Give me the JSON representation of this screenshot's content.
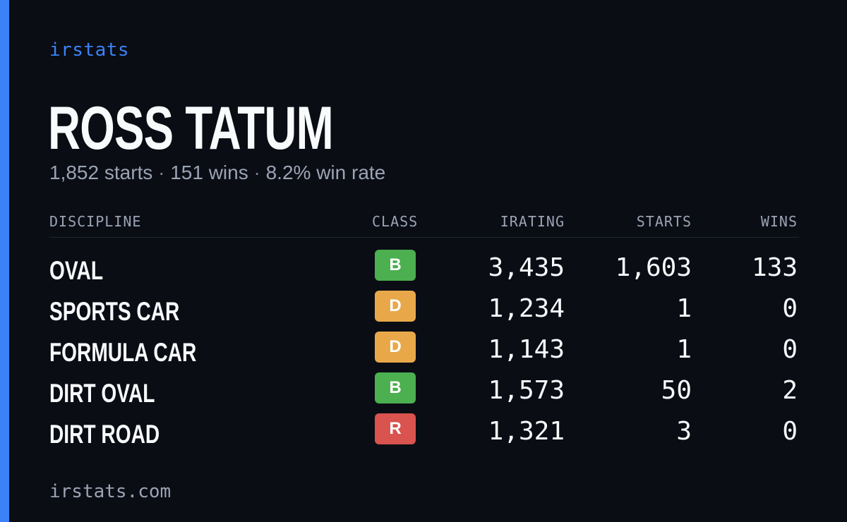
{
  "brand": "irstats",
  "player": {
    "name": "ROSS TATUM",
    "starts_text": "1,852 starts",
    "wins_text": "151 wins",
    "win_rate_text": "8.2% win rate",
    "separator": "·"
  },
  "table": {
    "headers": {
      "discipline": "DISCIPLINE",
      "class": "CLASS",
      "irating": "IRATING",
      "starts": "STARTS",
      "wins": "WINS"
    },
    "rows": [
      {
        "discipline": "OVAL",
        "class": "B",
        "class_color": "#4caf50",
        "irating": "3,435",
        "starts": "1,603",
        "wins": "133"
      },
      {
        "discipline": "SPORTS CAR",
        "class": "D",
        "class_color": "#e8a84a",
        "irating": "1,234",
        "starts": "1",
        "wins": "0"
      },
      {
        "discipline": "FORMULA CAR",
        "class": "D",
        "class_color": "#e8a84a",
        "irating": "1,143",
        "starts": "1",
        "wins": "0"
      },
      {
        "discipline": "DIRT OVAL",
        "class": "B",
        "class_color": "#4caf50",
        "irating": "1,573",
        "starts": "50",
        "wins": "2"
      },
      {
        "discipline": "DIRT ROAD",
        "class": "R",
        "class_color": "#d9534f",
        "irating": "1,321",
        "starts": "3",
        "wins": "0"
      }
    ]
  },
  "footer": {
    "domain": "irstats.com"
  },
  "colors": {
    "accent": "#3b82f6",
    "background": "#0a0d14",
    "muted_text": "#9ba3b4",
    "text": "#f8fafc"
  }
}
